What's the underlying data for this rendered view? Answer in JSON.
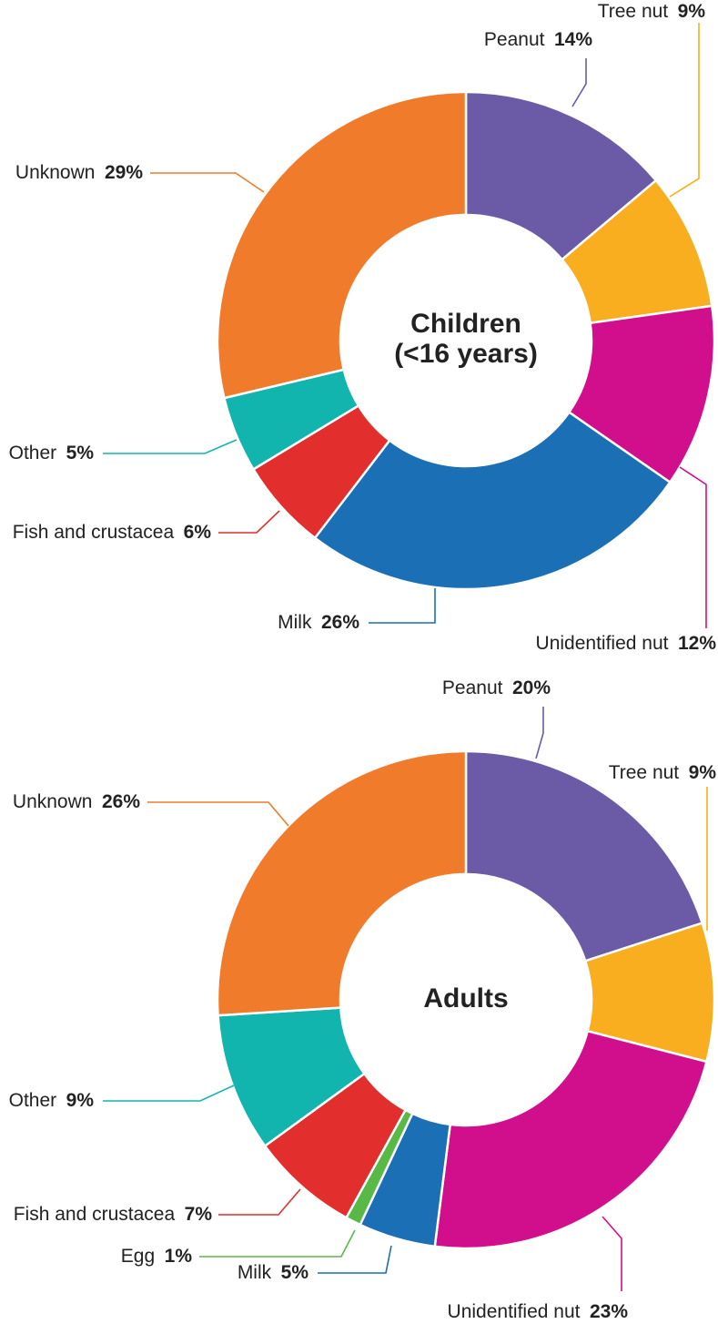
{
  "chart_data": [
    {
      "type": "pie",
      "variant": "donut",
      "title": "Children (<16 years)",
      "center_label_lines": [
        "Children",
        "(<16 years)"
      ],
      "slices": [
        {
          "name": "Peanut",
          "value": 14,
          "display": "14%",
          "color": "#6b5ba6"
        },
        {
          "name": "Tree nut",
          "value": 9,
          "display": "9%",
          "color": "#f8ae1e"
        },
        {
          "name": "Unidentified nut",
          "value": 12,
          "display": "12%",
          "color": "#d10f8c"
        },
        {
          "name": "Milk",
          "value": 26,
          "display": "26%",
          "color": "#1a6fb5"
        },
        {
          "name": "Fish and crustacea",
          "value": 6,
          "display": "6%",
          "color": "#e22e2d"
        },
        {
          "name": "Other",
          "value": 5,
          "display": "5%",
          "color": "#11b5ad"
        },
        {
          "name": "Unknown",
          "value": 29,
          "display": "29%",
          "color": "#f07b2a"
        }
      ]
    },
    {
      "type": "pie",
      "variant": "donut",
      "title": "Adults",
      "center_label_lines": [
        "Adults"
      ],
      "slices": [
        {
          "name": "Peanut",
          "value": 20,
          "display": "20%",
          "color": "#6b5ba6"
        },
        {
          "name": "Tree nut",
          "value": 9,
          "display": "9%",
          "color": "#f8ae1e"
        },
        {
          "name": "Unidentified nut",
          "value": 23,
          "display": "23%",
          "color": "#d10f8c"
        },
        {
          "name": "Milk",
          "value": 5,
          "display": "5%",
          "color": "#1a6fb5"
        },
        {
          "name": "Egg",
          "value": 1,
          "display": "1%",
          "color": "#58b947"
        },
        {
          "name": "Fish and crustacea",
          "value": 7,
          "display": "7%",
          "color": "#e22e2d"
        },
        {
          "name": "Other",
          "value": 9,
          "display": "9%",
          "color": "#11b5ad"
        },
        {
          "name": "Unknown",
          "value": 26,
          "display": "26%",
          "color": "#f07b2a"
        }
      ]
    }
  ]
}
